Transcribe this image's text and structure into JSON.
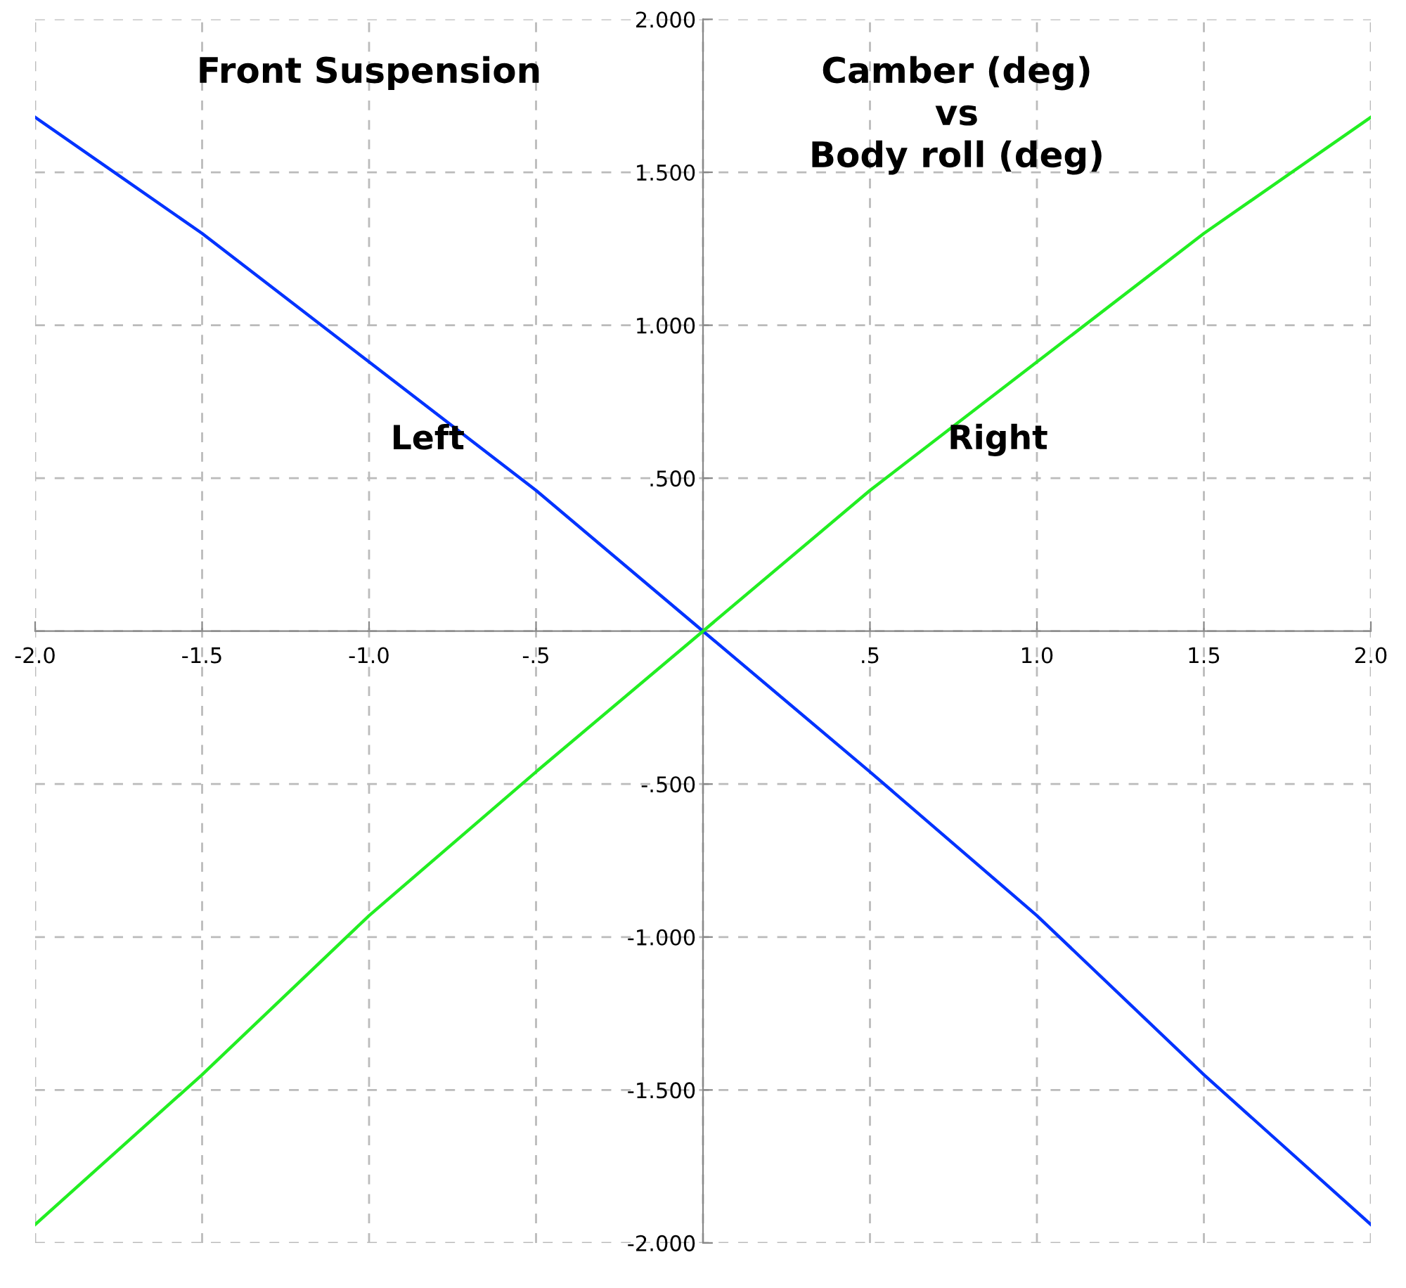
{
  "chart_data": {
    "type": "line",
    "title": "Camber (deg)\nvs\nBody roll (deg)",
    "annotations": [
      "Front Suspension"
    ],
    "x": [
      -2,
      -1.5,
      -1,
      -0.5,
      0,
      0.5,
      1,
      1.5,
      2
    ],
    "series": [
      {
        "name": "Left",
        "color": "#0033ff",
        "values": [
          1.68,
          1.3,
          0.88,
          0.46,
          0,
          -0.46,
          -0.93,
          -1.45,
          -1.94
        ]
      },
      {
        "name": "Right",
        "color": "#22ee22",
        "values": [
          -1.94,
          -1.45,
          -0.93,
          -0.46,
          0,
          0.46,
          0.88,
          1.3,
          1.68
        ]
      }
    ],
    "xlim": [
      -2,
      2
    ],
    "ylim": [
      -2,
      2
    ],
    "xticks": [
      {
        "value": -2,
        "label": "-2.0"
      },
      {
        "value": -1.5,
        "label": "-1.5"
      },
      {
        "value": -1,
        "label": "-1.0"
      },
      {
        "value": -0.5,
        "label": "-.5"
      },
      {
        "value": 0,
        "label": null
      },
      {
        "value": 0.5,
        "label": ".5"
      },
      {
        "value": 1,
        "label": "1.0"
      },
      {
        "value": 1.5,
        "label": "1.5"
      },
      {
        "value": 2,
        "label": "2.0"
      }
    ],
    "yticks": [
      {
        "value": -2,
        "label": "-2.000"
      },
      {
        "value": -1.5,
        "label": "-1.500"
      },
      {
        "value": -1,
        "label": "-1.000"
      },
      {
        "value": -0.5,
        "label": "-.500"
      },
      {
        "value": 0,
        "label": null
      },
      {
        "value": 0.5,
        "label": ".500"
      },
      {
        "value": 1,
        "label": "1.000"
      },
      {
        "value": 1.5,
        "label": "1.500"
      },
      {
        "value": 2,
        "label": "2.000"
      }
    ],
    "grid": true,
    "marker": "none",
    "line_style": "solid",
    "legend": false
  }
}
